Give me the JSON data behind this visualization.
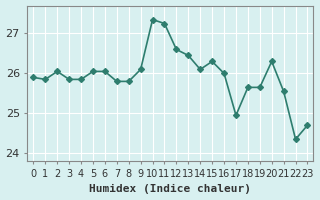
{
  "x": [
    0,
    1,
    2,
    3,
    4,
    5,
    6,
    7,
    8,
    9,
    10,
    11,
    12,
    13,
    14,
    15,
    16,
    17,
    18,
    19,
    20,
    21,
    22,
    23
  ],
  "y": [
    25.9,
    25.85,
    26.05,
    25.85,
    25.85,
    26.05,
    26.05,
    25.8,
    25.8,
    26.1,
    27.35,
    27.25,
    26.6,
    26.45,
    26.1,
    26.3,
    26.0,
    24.95,
    25.65,
    25.65,
    26.3,
    25.55,
    24.35,
    24.7
  ],
  "line_color": "#2e7d6e",
  "marker": "D",
  "marker_size": 3,
  "bg_color": "#d8f0f0",
  "grid_color": "#ffffff",
  "xlabel": "Humidex (Indice chaleur)",
  "ylim": [
    23.8,
    27.7
  ],
  "xlim": [
    -0.5,
    23.5
  ],
  "yticks": [
    24,
    25,
    26,
    27
  ],
  "xtick_labels": [
    "0",
    "1",
    "2",
    "3",
    "4",
    "5",
    "6",
    "7",
    "8",
    "9",
    "10",
    "11",
    "12",
    "13",
    "14",
    "15",
    "16",
    "17",
    "18",
    "19",
    "20",
    "21",
    "22",
    "23"
  ],
  "linewidth": 1.2,
  "font_size": 8,
  "tick_color": "#333333"
}
